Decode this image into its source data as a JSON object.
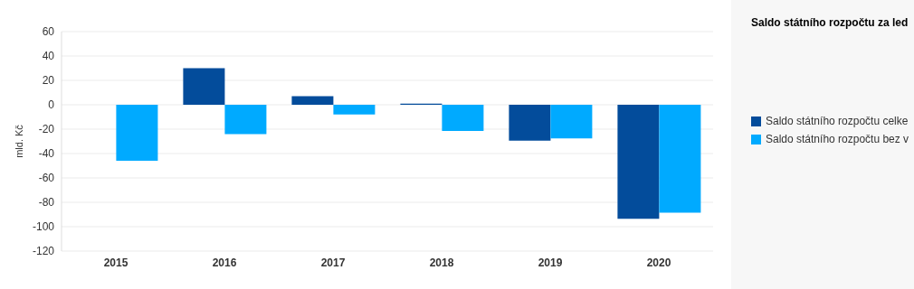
{
  "chart_data": {
    "type": "bar",
    "title": "Saldo státního rozpočtu za led",
    "ylabel": "mld. Kč",
    "categories": [
      "2015",
      "2016",
      "2017",
      "2018",
      "2019",
      "2020"
    ],
    "series": [
      {
        "name": "Saldo státního rozpočtu celke",
        "color": "#034c9b",
        "values": [
          null,
          30,
          7,
          1,
          -29.5,
          -93.5
        ]
      },
      {
        "name": "Saldo státního rozpočtu bez v",
        "color": "#00aaff",
        "values": [
          -46,
          -24,
          -8,
          -21.5,
          -27.5,
          -88.5
        ]
      }
    ],
    "ylim": [
      -120,
      60
    ],
    "yticks": [
      -120,
      -100,
      -80,
      -60,
      -40,
      -20,
      0,
      20,
      40,
      60
    ],
    "grid": "y",
    "legend": "right"
  }
}
